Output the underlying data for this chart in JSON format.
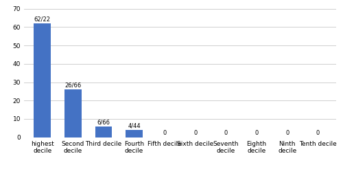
{
  "categories": [
    "highest\ndecile",
    "Second\ndecile",
    "Third decile",
    "Fourth\ndecile",
    "Fifth decile",
    "Sixth decile",
    "Seventh\ndecile",
    "Eighth\ndecile",
    "Ninth\ndecile",
    "Tenth decile"
  ],
  "values": [
    62,
    26,
    6,
    4,
    0,
    0,
    0,
    0,
    0,
    0
  ],
  "bar_labels": [
    "62/22",
    "26/66",
    "6/66",
    "4/44",
    "0",
    "0",
    "0",
    "0",
    "0",
    "0"
  ],
  "bar_color": "#4472c4",
  "ylim": [
    0,
    70
  ],
  "yticks": [
    0,
    10,
    20,
    30,
    40,
    50,
    60,
    70
  ],
  "background_color": "#ffffff",
  "grid_color": "#d0d0d0",
  "bar_label_fontsize": 6.0,
  "tick_fontsize": 6.5,
  "bar_width": 0.55,
  "figsize": [
    5.0,
    2.56
  ],
  "dpi": 100
}
